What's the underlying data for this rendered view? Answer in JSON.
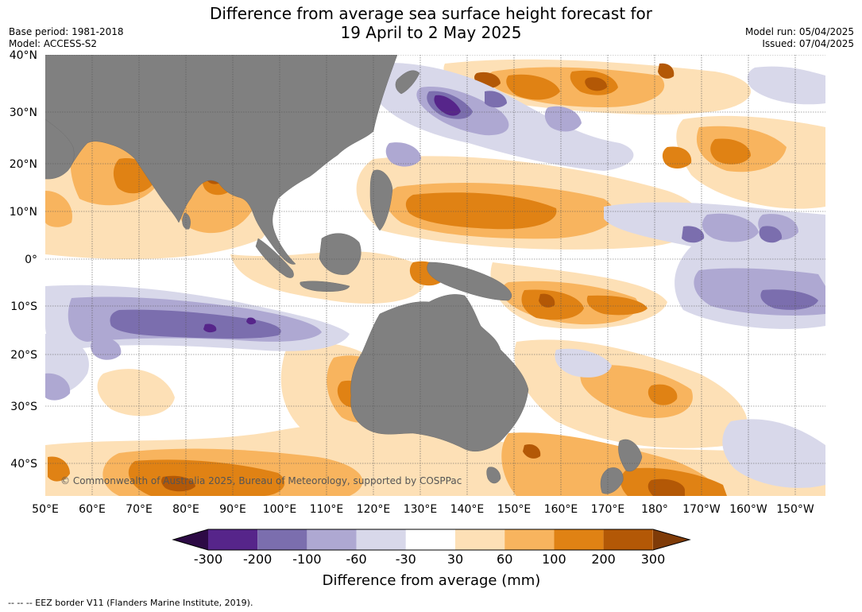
{
  "header": {
    "title_line1": "Difference from average sea surface height forecast for",
    "title_line2": "19 April to 2 May 2025",
    "base_period": "Base period: 1981-2018",
    "model": "Model: ACCESS-S2",
    "model_run": "Model run: 05/04/2025",
    "issued": "Issued: 07/04/2025"
  },
  "map": {
    "credit": "© Commonwealth of Australia 2025, Bureau of Meteorology, supported by COSPPac",
    "lat_labels": [
      "40°N",
      "30°N",
      "20°N",
      "10°N",
      "0°",
      "10°S",
      "20°S",
      "30°S",
      "40°S"
    ],
    "lon_labels": [
      "50°E",
      "60°E",
      "70°E",
      "80°E",
      "90°E",
      "100°E",
      "110°E",
      "120°E",
      "130°E",
      "140°E",
      "150°E",
      "160°E",
      "170°E",
      "180°",
      "170°W",
      "160°W",
      "150°W"
    ],
    "colors": {
      "ocean_neutral": "#ffffff",
      "land": "#808080"
    }
  },
  "colorbar": {
    "tick_labels": [
      "-300",
      "-200",
      "-100",
      "-60",
      "-30",
      "30",
      "60",
      "100",
      "200",
      "300"
    ],
    "colors": [
      "#2d0a45",
      "#56258a",
      "#7b6eae",
      "#aea8d2",
      "#d8d8ea",
      "#ffffff",
      "#fde0b6",
      "#f8b45e",
      "#e08214",
      "#b35806",
      "#7f3b08"
    ],
    "title": "Difference from average (mm)"
  },
  "footer": {
    "eez_note": "--  --  -- EEZ border V11 (Flanders Marine Institute, 2019)."
  }
}
